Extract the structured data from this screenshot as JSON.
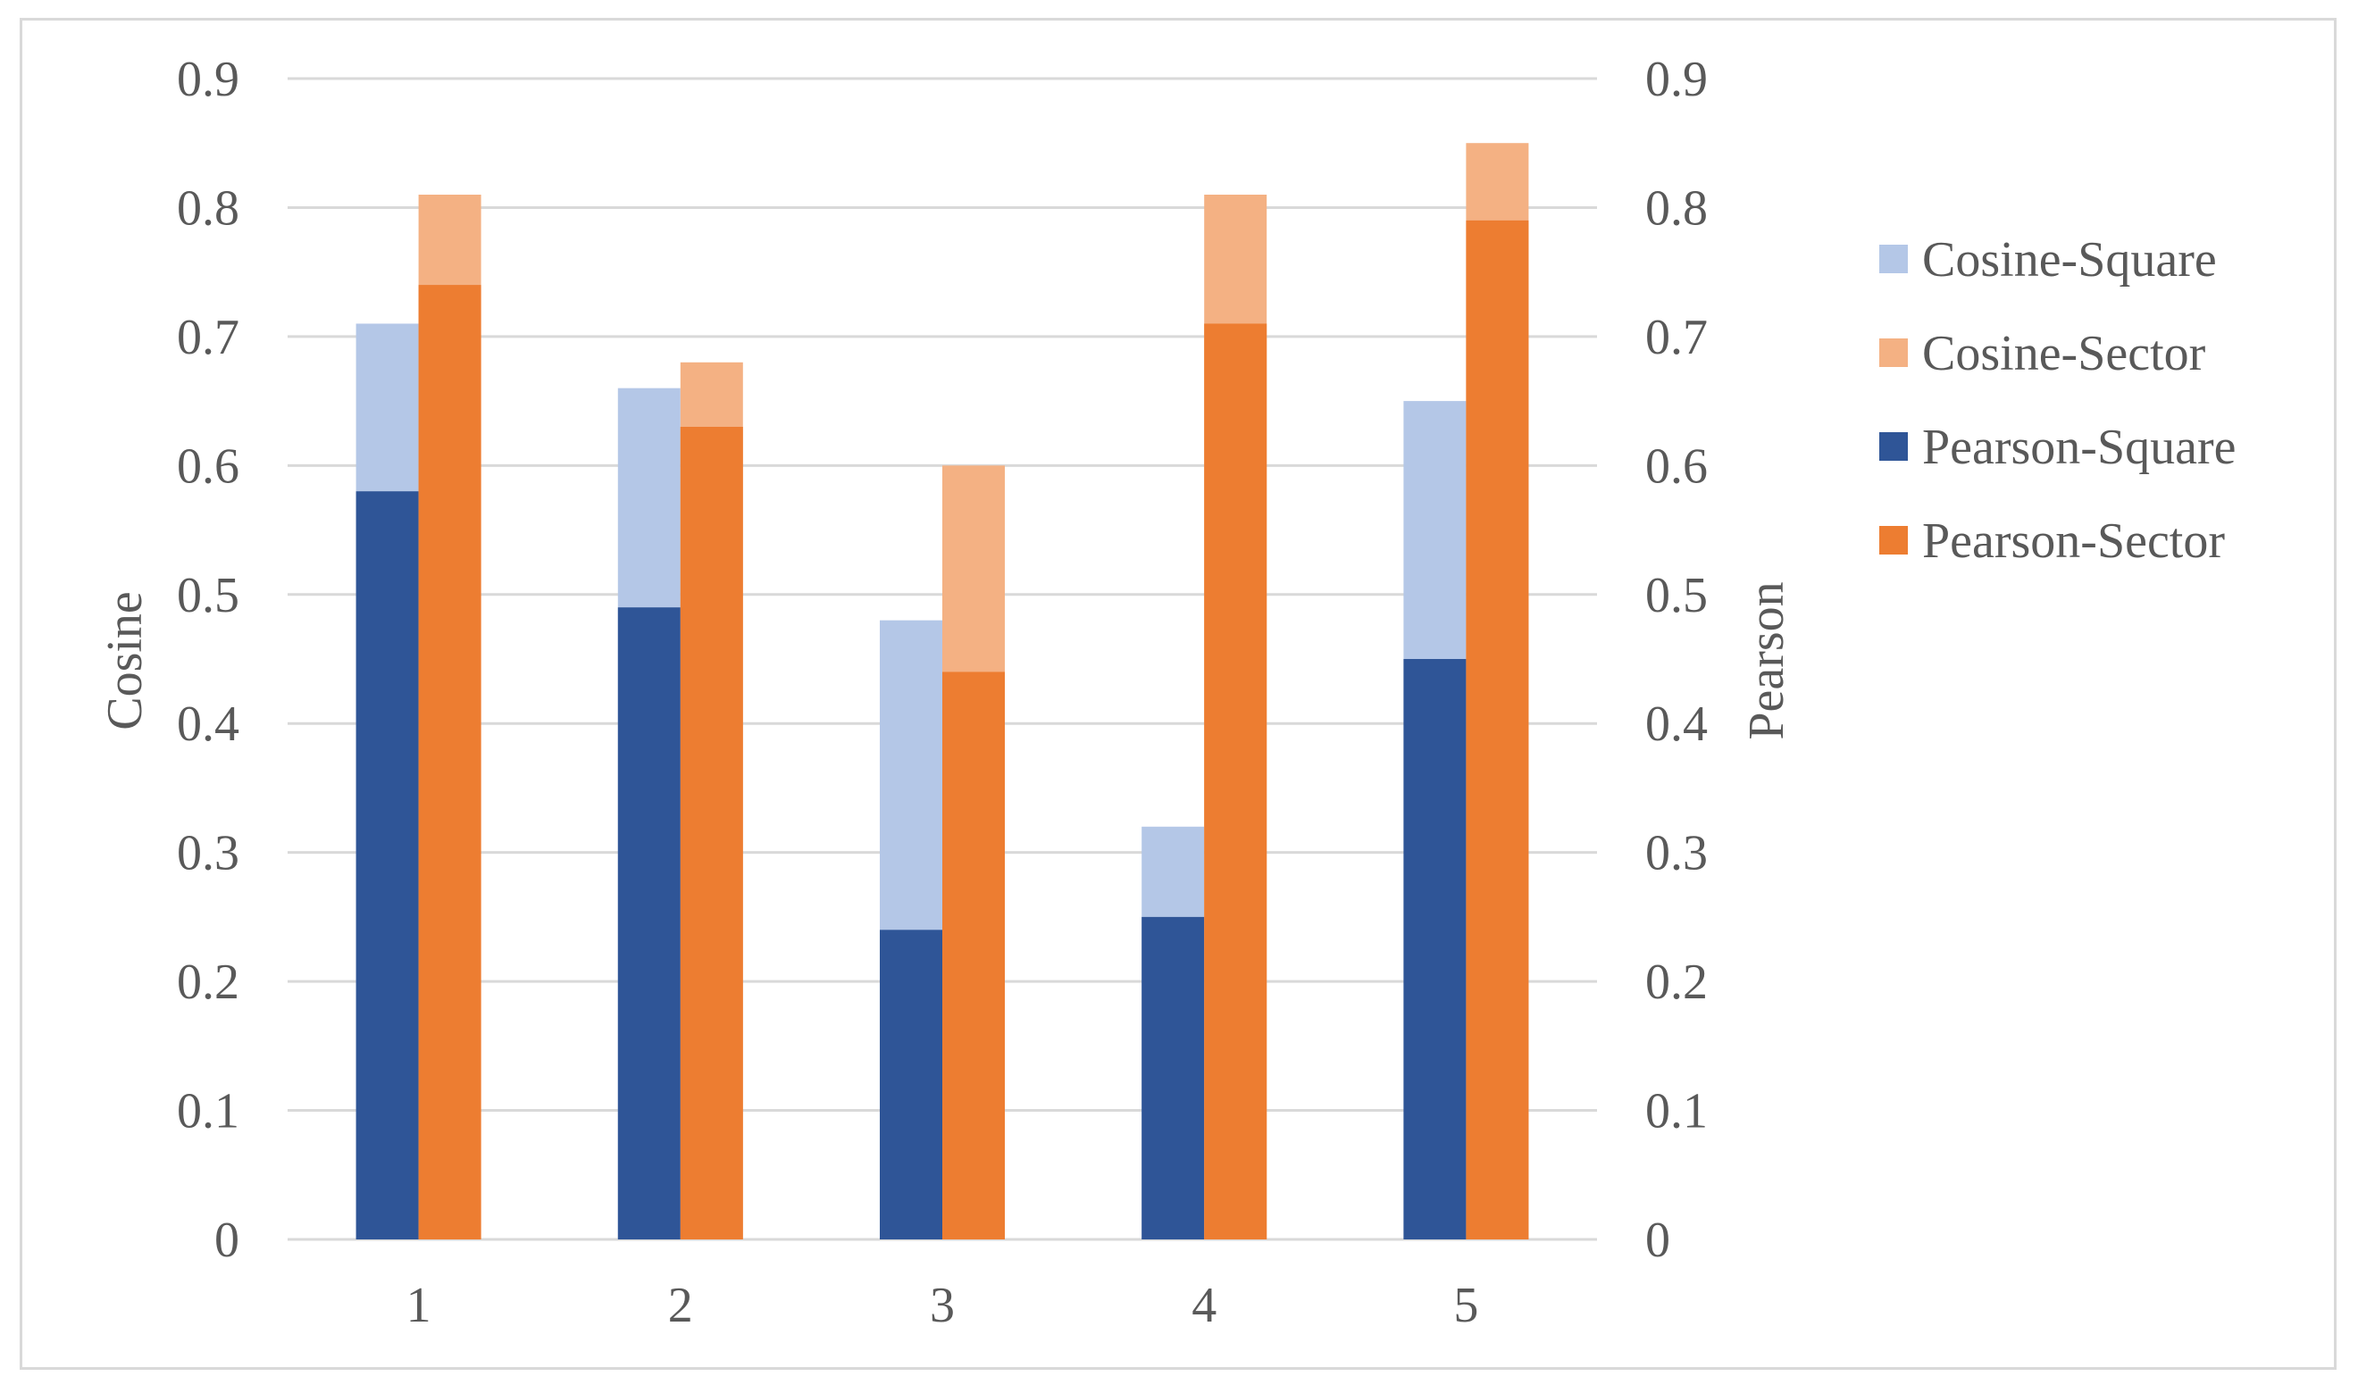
{
  "chart_data": {
    "type": "bar",
    "categories": [
      "1",
      "2",
      "3",
      "4",
      "5"
    ],
    "series": [
      {
        "name": "Cosine-Square",
        "axis": "left",
        "color": "#b4c7e7",
        "values": [
          0.71,
          0.66,
          0.48,
          0.32,
          0.65
        ]
      },
      {
        "name": "Cosine-Sector",
        "axis": "left",
        "color": "#f4b183",
        "values": [
          0.81,
          0.68,
          0.6,
          0.81,
          0.85
        ]
      },
      {
        "name": "Pearson-Square",
        "axis": "right",
        "color": "#2f5597",
        "values": [
          0.58,
          0.49,
          0.24,
          0.25,
          0.45
        ]
      },
      {
        "name": "Pearson-Sector",
        "axis": "right",
        "color": "#ed7d31",
        "values": [
          0.74,
          0.63,
          0.44,
          0.71,
          0.79
        ]
      }
    ],
    "y_left": {
      "label": "Cosine",
      "ylim": [
        0,
        0.9
      ],
      "ticks": [
        "0",
        "0.1",
        "0.2",
        "0.3",
        "0.4",
        "0.5",
        "0.6",
        "0.7",
        "0.8",
        "0.9"
      ]
    },
    "y_right": {
      "label": "Pearson",
      "ylim": [
        0,
        0.9
      ],
      "ticks": [
        "0",
        "0.1",
        "0.2",
        "0.3",
        "0.4",
        "0.5",
        "0.6",
        "0.7",
        "0.8",
        "0.9"
      ]
    },
    "grid": true,
    "legend_position": "right"
  }
}
